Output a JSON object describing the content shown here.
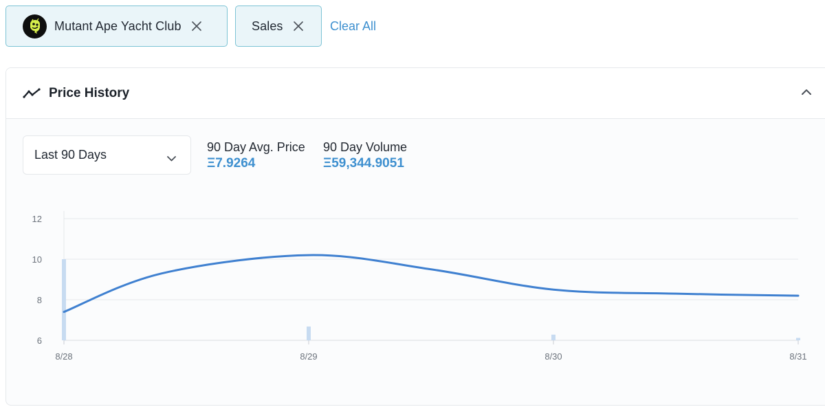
{
  "filters": {
    "collection_chip": {
      "label": "Mutant Ape Yacht Club",
      "avatar_icon": "mutant-ape-avatar-icon",
      "close_icon": "close-icon"
    },
    "event_chip": {
      "label": "Sales",
      "close_icon": "close-icon"
    },
    "clear_all_label": "Clear All"
  },
  "price_history": {
    "title": "Price History",
    "title_icon": "trend-line-icon",
    "collapse_icon": "chevron-up-icon",
    "period_select": {
      "value": "Last 90 Days",
      "icon": "chevron-down-icon"
    },
    "stats": [
      {
        "label": "90 Day Avg. Price",
        "value": "Ξ7.9264"
      },
      {
        "label": "90 Day Volume",
        "value": "Ξ59,344.9051"
      }
    ]
  },
  "colors": {
    "accent": "#3d8fcf",
    "line": "#3f80d0",
    "volume_bar": "#c7dbf1",
    "chip_border": "#7cc3d4",
    "chip_bg": "#eaf5f9"
  },
  "chart_data": {
    "type": "line",
    "x": [
      "8/28",
      "8/29",
      "8/30",
      "8/31"
    ],
    "x_numeric": [
      0,
      1,
      2,
      3
    ],
    "series": [
      {
        "x": [
          0,
          0.4,
          1,
          1.5,
          2,
          2.5,
          3
        ],
        "values": [
          7.4,
          9.3,
          10.2,
          9.5,
          8.5,
          8.3,
          8.2
        ]
      }
    ],
    "volume_bars": [
      {
        "x": 0,
        "relative_height": 1.0
      },
      {
        "x": 1,
        "relative_height": 0.17
      },
      {
        "x": 2,
        "relative_height": 0.07
      },
      {
        "x": 3,
        "relative_height": 0.03
      }
    ],
    "y_ticks": [
      "6",
      "8",
      "10",
      "12"
    ],
    "y_tick_values": [
      6,
      8,
      10,
      12
    ],
    "ylim": [
      6,
      12
    ],
    "xlim": [
      0,
      3
    ],
    "grid": true,
    "legend": "none",
    "title": "",
    "xlabel": "",
    "ylabel": ""
  }
}
